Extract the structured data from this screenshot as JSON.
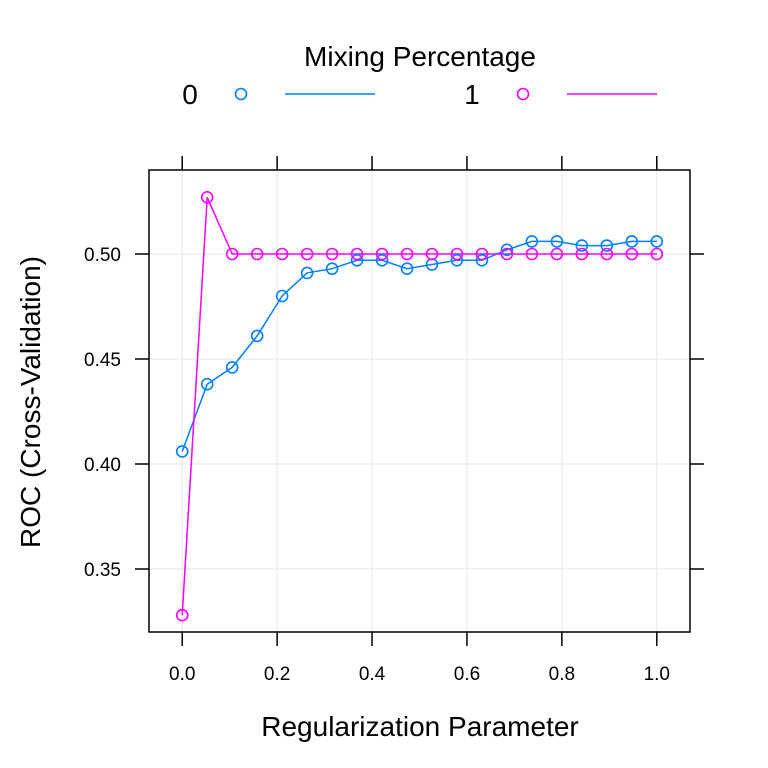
{
  "chart_data": {
    "type": "line",
    "xlabel": "Regularization Parameter",
    "ylabel": "ROC (Cross-Validation)",
    "legend_title": "Mixing Percentage",
    "legend_position": "top",
    "grid": true,
    "xlim": [
      -0.07,
      1.07
    ],
    "ylim": [
      0.32,
      0.54
    ],
    "x_ticks": [
      0.0,
      0.2,
      0.4,
      0.6,
      0.8,
      1.0
    ],
    "x_tick_labels": [
      "0.0",
      "0.2",
      "0.4",
      "0.6",
      "0.8",
      "1.0"
    ],
    "y_ticks": [
      0.35,
      0.4,
      0.45,
      0.5
    ],
    "y_tick_labels": [
      "0.35",
      "0.40",
      "0.45",
      "0.50"
    ],
    "x": [
      0.0,
      0.0526,
      0.1053,
      0.1579,
      0.2105,
      0.2632,
      0.3158,
      0.3684,
      0.4211,
      0.4737,
      0.5263,
      0.5789,
      0.6316,
      0.6842,
      0.7368,
      0.7895,
      0.8421,
      0.8947,
      0.9474,
      1.0
    ],
    "series": [
      {
        "name": "0",
        "color": "#0080ff",
        "values": [
          0.406,
          0.438,
          0.446,
          0.461,
          0.48,
          0.491,
          0.493,
          0.497,
          0.497,
          0.493,
          0.495,
          0.497,
          0.497,
          0.502,
          0.506,
          0.506,
          0.504,
          0.504,
          0.506,
          0.506
        ]
      },
      {
        "name": "1",
        "color": "#ff00ff",
        "values": [
          0.328,
          0.527,
          0.5,
          0.5,
          0.5,
          0.5,
          0.5,
          0.5,
          0.5,
          0.5,
          0.5,
          0.5,
          0.5,
          0.5,
          0.5,
          0.5,
          0.5,
          0.5,
          0.5,
          0.5
        ]
      }
    ]
  }
}
